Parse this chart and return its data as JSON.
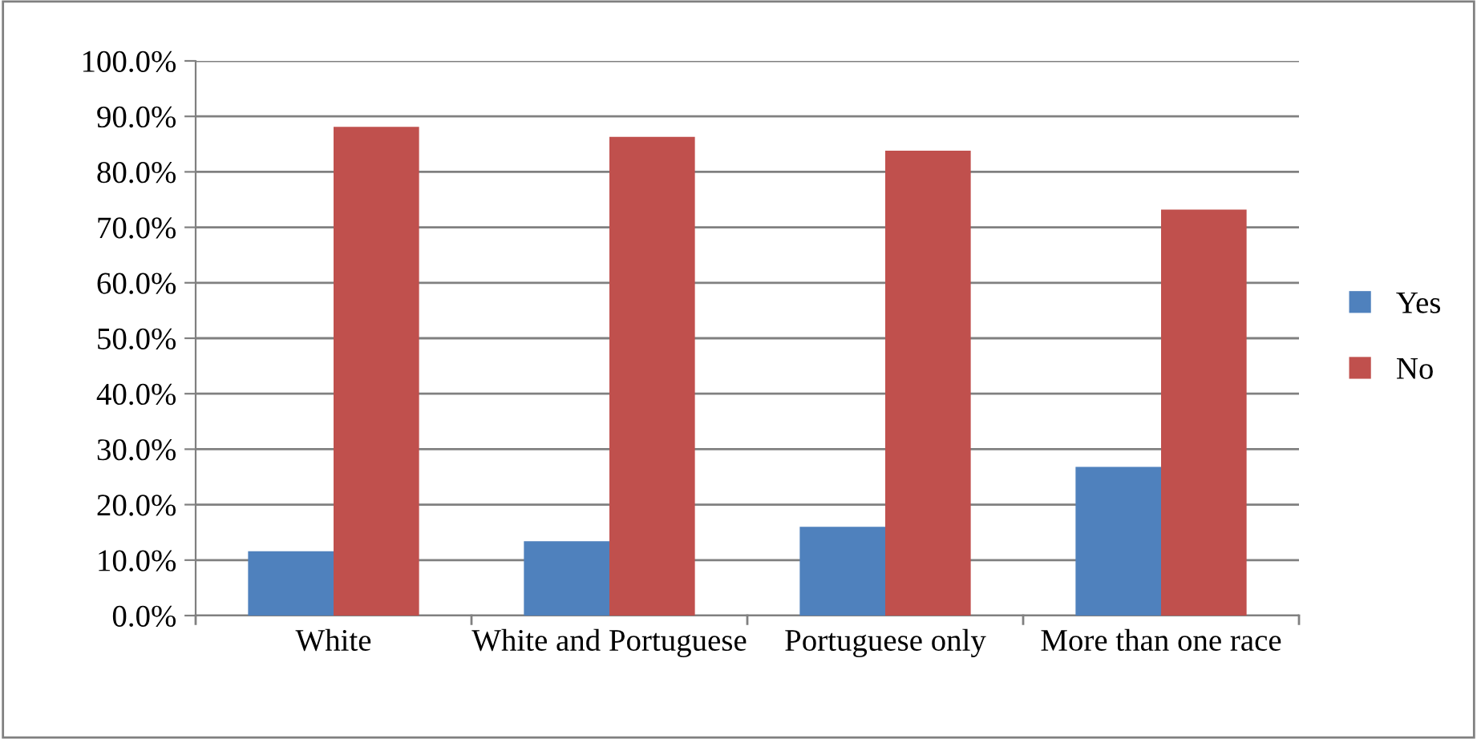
{
  "chart_data": {
    "type": "bar",
    "categories": [
      "White",
      "White and Portuguese",
      "Portuguese only",
      "More than one race"
    ],
    "series": [
      {
        "name": "Yes",
        "color": "#4f81bd",
        "values": [
          11.6,
          13.4,
          16.0,
          26.8
        ]
      },
      {
        "name": "No",
        "color": "#c0504d",
        "values": [
          88.1,
          86.3,
          83.8,
          73.2
        ]
      }
    ],
    "ylim": [
      0,
      100
    ],
    "yticks": [
      {
        "value": 0,
        "label": "0.0%"
      },
      {
        "value": 10,
        "label": "10.0%"
      },
      {
        "value": 20,
        "label": "20.0%"
      },
      {
        "value": 30,
        "label": "30.0%"
      },
      {
        "value": 40,
        "label": "40.0%"
      },
      {
        "value": 50,
        "label": "50.0%"
      },
      {
        "value": 60,
        "label": "60.0%"
      },
      {
        "value": 70,
        "label": "70.0%"
      },
      {
        "value": 80,
        "label": "80.0%"
      },
      {
        "value": 90,
        "label": "90.0%"
      },
      {
        "value": 100,
        "label": "100.0%"
      }
    ],
    "grid": "y",
    "legend": "right"
  }
}
